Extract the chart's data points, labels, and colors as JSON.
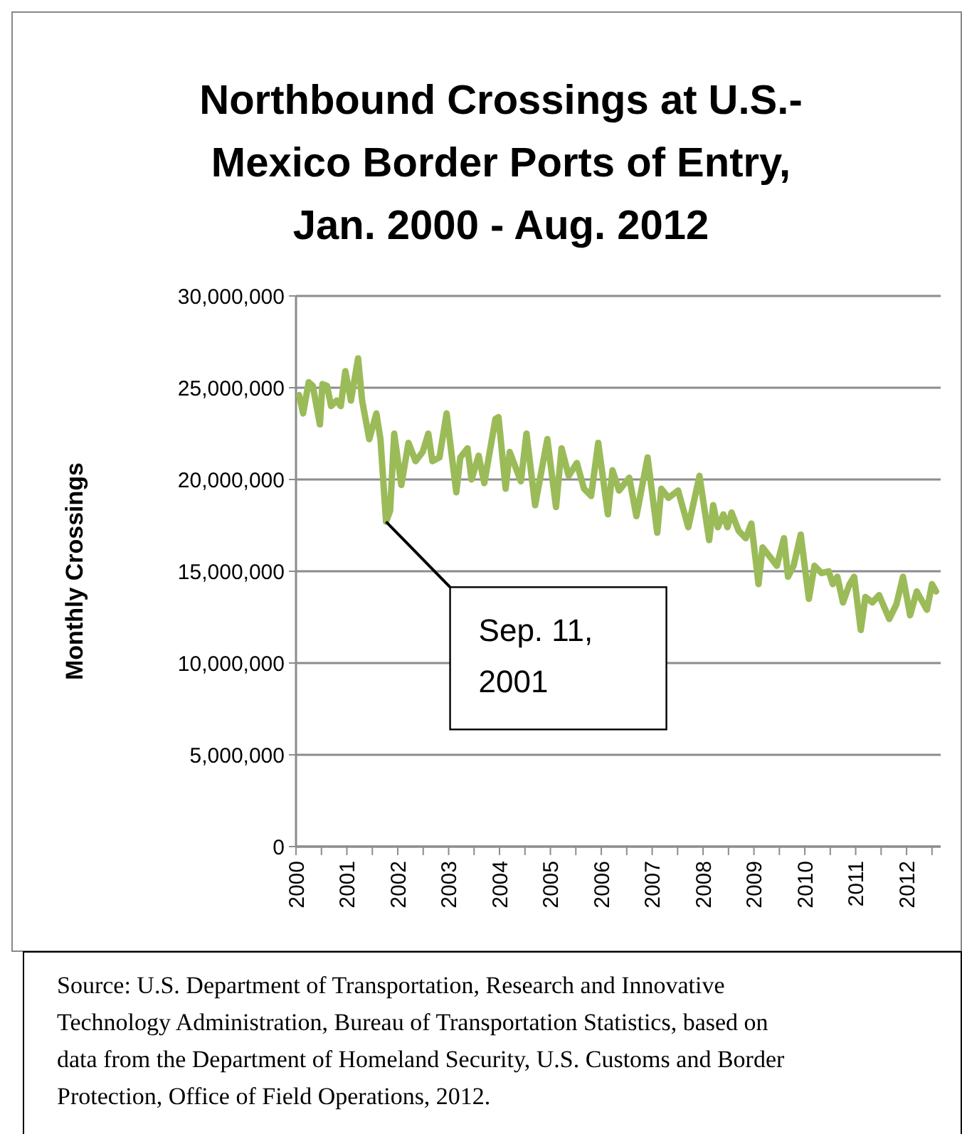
{
  "chart_data": {
    "type": "line",
    "title": "Northbound Crossings at U.S.-Mexico Border Ports of Entry, Jan. 2000 - Aug. 2012",
    "ylabel": "Monthly Crossings",
    "x": [
      2000.06,
      2000.14,
      2000.25,
      2000.33,
      2000.47,
      2000.52,
      2000.61,
      2000.69,
      2000.8,
      2000.88,
      2000.97,
      2001.08,
      2001.22,
      2001.3,
      2001.44,
      2001.58,
      2001.66,
      2001.77,
      2001.85,
      2001.93,
      2002.07,
      2002.21,
      2002.35,
      2002.49,
      2002.6,
      2002.68,
      2002.82,
      2002.96,
      2003.15,
      2003.23,
      2003.37,
      2003.45,
      2003.59,
      2003.7,
      2003.92,
      2003.98,
      2004.12,
      2004.2,
      2004.31,
      2004.42,
      2004.53,
      2004.7,
      2004.94,
      2005.11,
      2005.22,
      2005.36,
      2005.52,
      2005.66,
      2005.8,
      2005.94,
      2006.13,
      2006.22,
      2006.35,
      2006.55,
      2006.69,
      2006.91,
      2007.1,
      2007.18,
      2007.32,
      2007.51,
      2007.71,
      2007.93,
      2008.12,
      2008.2,
      2008.29,
      2008.4,
      2008.48,
      2008.56,
      2008.7,
      2008.84,
      2008.95,
      2009.09,
      2009.17,
      2009.31,
      2009.45,
      2009.59,
      2009.67,
      2009.78,
      2009.92,
      2010.08,
      2010.19,
      2010.33,
      2010.47,
      2010.55,
      2010.64,
      2010.75,
      2010.88,
      2010.97,
      2011.1,
      2011.19,
      2011.33,
      2011.46,
      2011.66,
      2011.8,
      2011.93,
      2012.07,
      2012.2,
      2012.4,
      2012.5,
      2012.58
    ],
    "values": [
      24600000,
      23600000,
      25300000,
      25100000,
      23000000,
      25200000,
      25100000,
      24000000,
      24300000,
      24000000,
      25900000,
      24300000,
      26600000,
      24300000,
      22200000,
      23600000,
      22200000,
      17700000,
      18300000,
      22500000,
      19700000,
      22000000,
      21000000,
      21500000,
      22500000,
      21000000,
      21200000,
      23600000,
      19300000,
      21200000,
      21700000,
      20000000,
      21300000,
      19800000,
      23300000,
      23400000,
      19500000,
      21500000,
      20700000,
      19900000,
      22500000,
      18600000,
      22200000,
      18500000,
      21700000,
      20200000,
      20900000,
      19500000,
      19100000,
      22000000,
      18100000,
      20500000,
      19400000,
      20100000,
      18000000,
      21200000,
      17100000,
      19500000,
      19000000,
      19400000,
      17400000,
      20200000,
      16700000,
      18600000,
      17400000,
      18100000,
      17400000,
      18200000,
      17200000,
      16800000,
      17600000,
      14300000,
      16300000,
      15800000,
      15300000,
      16800000,
      14700000,
      15300000,
      17000000,
      13500000,
      15300000,
      14900000,
      15000000,
      14300000,
      14700000,
      13300000,
      14300000,
      14700000,
      11800000,
      13600000,
      13300000,
      13700000,
      12400000,
      13200000,
      14700000,
      12600000,
      13900000,
      12900000,
      14300000,
      13900000
    ],
    "color": "#9bbb59",
    "marker": "none",
    "line_style": "solid",
    "grid": "y",
    "xlim": [
      2000,
      2012.67
    ],
    "xticks": [
      2000,
      {
        "value": 2000.5,
        "label": null
      },
      2001,
      {
        "value": 2001.5,
        "label": null
      },
      2002,
      {
        "value": 2002.5,
        "label": null
      },
      2003,
      {
        "value": 2003.5,
        "label": null
      },
      2004,
      {
        "value": 2004.5,
        "label": null
      },
      2005,
      {
        "value": 2005.5,
        "label": null
      },
      2006,
      {
        "value": 2006.5,
        "label": null
      },
      2007,
      {
        "value": 2007.5,
        "label": null
      },
      2008,
      {
        "value": 2008.5,
        "label": null
      },
      2009,
      {
        "value": 2009.5,
        "label": null
      },
      2010,
      {
        "value": 2010.5,
        "label": null
      },
      2011,
      {
        "value": 2011.5,
        "label": null
      },
      2012,
      {
        "value": 2012.5,
        "label": null
      }
    ],
    "ylim": [
      0,
      30000000
    ],
    "yticks": [
      0,
      {
        "value": 5000000,
        "label": "5,000,000"
      },
      {
        "value": 10000000,
        "label": "10,000,000"
      },
      {
        "value": 15000000,
        "label": "15,000,000"
      },
      {
        "value": 20000000,
        "label": "20,000,000"
      },
      {
        "value": 25000000,
        "label": "25,000,000"
      },
      {
        "value": 30000000,
        "label": "30,000,000"
      }
    ],
    "annotations": [
      {
        "text": "Sep. 11, 2001",
        "x": 2001.77,
        "y": 17700000
      },
      "Source: U.S. Department of Transportation, Research and Innovative Technology Administration, Bureau of Transportation Statistics, based on data from the Department of Homeland Security, U.S. Customs and Border Protection, Office of Field Operations, 2012."
    ]
  }
}
